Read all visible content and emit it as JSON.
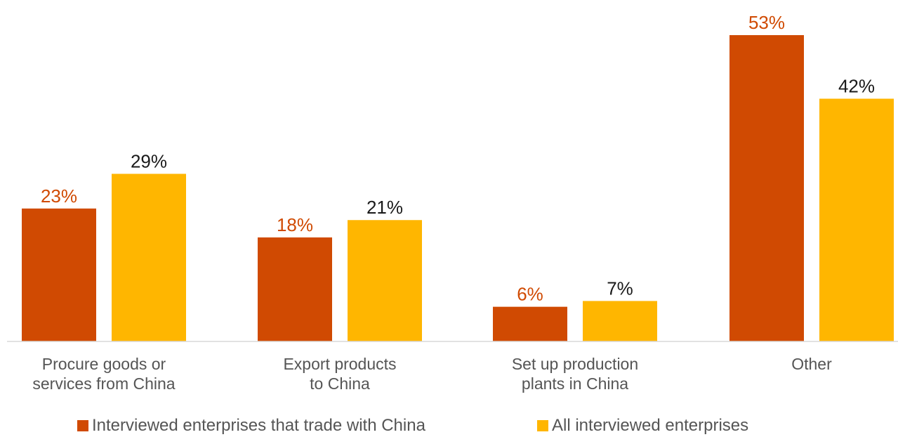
{
  "chart_data": {
    "type": "bar",
    "categories": [
      [
        "Procure goods or",
        "services from China"
      ],
      [
        "Export products",
        "to China"
      ],
      [
        "Set up production",
        "plants in China"
      ],
      [
        "Other"
      ]
    ],
    "series": [
      {
        "name": "Interviewed enterprises that trade with China",
        "values": [
          23,
          18,
          6,
          53
        ],
        "labels": [
          "23%",
          "18%",
          "6%",
          "53%"
        ],
        "color": "#D04A02"
      },
      {
        "name": "All interviewed enterprises",
        "values": [
          29,
          21,
          7,
          42
        ],
        "labels": [
          "29%",
          "21%",
          "7%",
          "42%"
        ],
        "color": "#FFB600"
      }
    ],
    "label_colors": [
      "#D04A02",
      "#1a1a1a"
    ],
    "ylim": [
      0,
      53
    ],
    "grid": false,
    "legend_position": "bottom"
  }
}
